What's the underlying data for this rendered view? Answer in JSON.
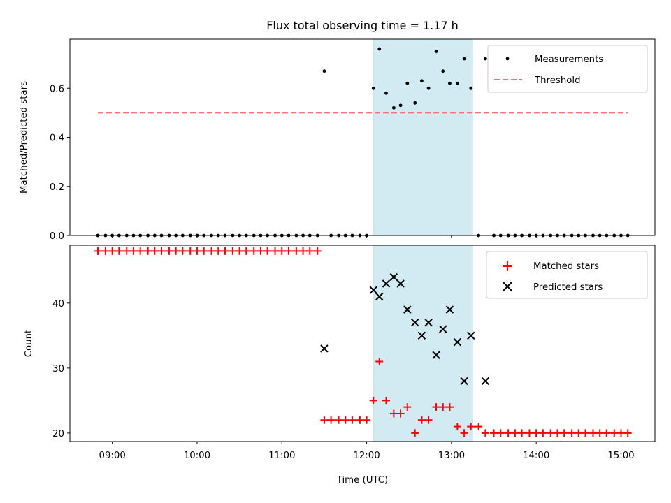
{
  "chart_data": [
    {
      "type": "scatter",
      "title": "Flux total observing time = 1.17 h",
      "xlabel": "",
      "ylabel": "Matched/Predicted stars",
      "ylim": [
        0.0,
        0.8
      ],
      "yticks": [
        0.0,
        0.2,
        0.4,
        0.6
      ],
      "ytick_labels": [
        "0.0",
        "0.2",
        "0.4",
        "0.6"
      ],
      "shaded_region": {
        "x_start": 12.08,
        "x_end": 13.25,
        "color": "#add8e6"
      },
      "legend_position": "upper right",
      "series": [
        {
          "name": "Measurements",
          "style": "dot",
          "color": "#000000",
          "points": [
            [
              8.83,
              0
            ],
            [
              8.92,
              0
            ],
            [
              9.0,
              0
            ],
            [
              9.08,
              0
            ],
            [
              9.17,
              0
            ],
            [
              9.25,
              0
            ],
            [
              9.33,
              0
            ],
            [
              9.42,
              0
            ],
            [
              9.5,
              0
            ],
            [
              9.58,
              0
            ],
            [
              9.67,
              0
            ],
            [
              9.75,
              0
            ],
            [
              9.83,
              0
            ],
            [
              9.92,
              0
            ],
            [
              10.0,
              0
            ],
            [
              10.08,
              0
            ],
            [
              10.17,
              0
            ],
            [
              10.25,
              0
            ],
            [
              10.33,
              0
            ],
            [
              10.42,
              0
            ],
            [
              10.5,
              0
            ],
            [
              10.58,
              0
            ],
            [
              10.67,
              0
            ],
            [
              10.75,
              0
            ],
            [
              10.83,
              0
            ],
            [
              10.92,
              0
            ],
            [
              11.0,
              0
            ],
            [
              11.08,
              0
            ],
            [
              11.17,
              0
            ],
            [
              11.25,
              0
            ],
            [
              11.33,
              0
            ],
            [
              11.42,
              0
            ],
            [
              11.5,
              0.67
            ],
            [
              11.58,
              0
            ],
            [
              11.67,
              0
            ],
            [
              11.75,
              0
            ],
            [
              11.83,
              0
            ],
            [
              11.92,
              0
            ],
            [
              12.0,
              0
            ],
            [
              12.08,
              0.6
            ],
            [
              12.15,
              0.76
            ],
            [
              12.23,
              0.58
            ],
            [
              12.32,
              0.52
            ],
            [
              12.4,
              0.53
            ],
            [
              12.48,
              0.62
            ],
            [
              12.57,
              0.54
            ],
            [
              12.65,
              0.63
            ],
            [
              12.73,
              0.6
            ],
            [
              12.82,
              0.75
            ],
            [
              12.9,
              0.67
            ],
            [
              12.98,
              0.62
            ],
            [
              13.07,
              0.62
            ],
            [
              13.15,
              0.72
            ],
            [
              13.23,
              0.6
            ],
            [
              13.32,
              0
            ],
            [
              13.4,
              0.72
            ],
            [
              13.5,
              0
            ],
            [
              13.58,
              0
            ],
            [
              13.67,
              0
            ],
            [
              13.75,
              0
            ],
            [
              13.83,
              0
            ],
            [
              13.92,
              0
            ],
            [
              14.0,
              0
            ],
            [
              14.08,
              0
            ],
            [
              14.17,
              0
            ],
            [
              14.25,
              0
            ],
            [
              14.33,
              0
            ],
            [
              14.42,
              0
            ],
            [
              14.5,
              0
            ],
            [
              14.58,
              0
            ],
            [
              14.67,
              0
            ],
            [
              14.75,
              0
            ],
            [
              14.83,
              0
            ],
            [
              14.92,
              0
            ],
            [
              15.0,
              0
            ],
            [
              15.08,
              0
            ]
          ]
        },
        {
          "name": "Threshold",
          "style": "dashed-line",
          "color": "#ff7070",
          "points": [
            [
              8.83,
              0.5
            ],
            [
              15.08,
              0.5
            ]
          ]
        }
      ]
    },
    {
      "type": "scatter",
      "title": "",
      "xlabel": "Time (UTC)",
      "ylabel": "Count",
      "ylim": [
        18.7,
        48.9
      ],
      "yticks": [
        20,
        30,
        40
      ],
      "ytick_labels": [
        "20",
        "30",
        "40"
      ],
      "xlim": [
        8.5,
        15.4
      ],
      "xticks": [
        9,
        10,
        11,
        12,
        13,
        14,
        15
      ],
      "xtick_labels": [
        "09:00",
        "10:00",
        "11:00",
        "12:00",
        "13:00",
        "14:00",
        "15:00"
      ],
      "shaded_region": {
        "x_start": 12.08,
        "x_end": 13.25,
        "color": "#add8e6"
      },
      "legend_position": "upper right",
      "series": [
        {
          "name": "Matched stars",
          "style": "plus",
          "color": "#ff0000",
          "points": [
            [
              8.83,
              48
            ],
            [
              8.92,
              48
            ],
            [
              9.0,
              48
            ],
            [
              9.08,
              48
            ],
            [
              9.17,
              48
            ],
            [
              9.25,
              48
            ],
            [
              9.33,
              48
            ],
            [
              9.42,
              48
            ],
            [
              9.5,
              48
            ],
            [
              9.58,
              48
            ],
            [
              9.67,
              48
            ],
            [
              9.75,
              48
            ],
            [
              9.83,
              48
            ],
            [
              9.92,
              48
            ],
            [
              10.0,
              48
            ],
            [
              10.08,
              48
            ],
            [
              10.17,
              48
            ],
            [
              10.25,
              48
            ],
            [
              10.33,
              48
            ],
            [
              10.42,
              48
            ],
            [
              10.5,
              48
            ],
            [
              10.58,
              48
            ],
            [
              10.67,
              48
            ],
            [
              10.75,
              48
            ],
            [
              10.83,
              48
            ],
            [
              10.92,
              48
            ],
            [
              11.0,
              48
            ],
            [
              11.08,
              48
            ],
            [
              11.17,
              48
            ],
            [
              11.25,
              48
            ],
            [
              11.33,
              48
            ],
            [
              11.42,
              48
            ],
            [
              11.5,
              22
            ],
            [
              11.58,
              22
            ],
            [
              11.67,
              22
            ],
            [
              11.75,
              22
            ],
            [
              11.83,
              22
            ],
            [
              11.92,
              22
            ],
            [
              12.0,
              22
            ],
            [
              12.08,
              25
            ],
            [
              12.15,
              31
            ],
            [
              12.23,
              25
            ],
            [
              12.32,
              23
            ],
            [
              12.4,
              23
            ],
            [
              12.48,
              24
            ],
            [
              12.57,
              20
            ],
            [
              12.65,
              22
            ],
            [
              12.73,
              22
            ],
            [
              12.82,
              24
            ],
            [
              12.9,
              24
            ],
            [
              12.98,
              24
            ],
            [
              13.07,
              21
            ],
            [
              13.15,
              20
            ],
            [
              13.23,
              21
            ],
            [
              13.32,
              21
            ],
            [
              13.4,
              20
            ],
            [
              13.5,
              20
            ],
            [
              13.58,
              20
            ],
            [
              13.67,
              20
            ],
            [
              13.75,
              20
            ],
            [
              13.83,
              20
            ],
            [
              13.92,
              20
            ],
            [
              14.0,
              20
            ],
            [
              14.08,
              20
            ],
            [
              14.17,
              20
            ],
            [
              14.25,
              20
            ],
            [
              14.33,
              20
            ],
            [
              14.42,
              20
            ],
            [
              14.5,
              20
            ],
            [
              14.58,
              20
            ],
            [
              14.67,
              20
            ],
            [
              14.75,
              20
            ],
            [
              14.83,
              20
            ],
            [
              14.92,
              20
            ],
            [
              15.0,
              20
            ],
            [
              15.08,
              20
            ]
          ]
        },
        {
          "name": "Predicted stars",
          "style": "x",
          "color": "#000000",
          "points": [
            [
              11.5,
              33
            ],
            [
              12.08,
              42
            ],
            [
              12.15,
              41
            ],
            [
              12.23,
              43
            ],
            [
              12.32,
              44
            ],
            [
              12.4,
              43
            ],
            [
              12.48,
              39
            ],
            [
              12.57,
              37
            ],
            [
              12.65,
              35
            ],
            [
              12.73,
              37
            ],
            [
              12.82,
              32
            ],
            [
              12.9,
              36
            ],
            [
              12.98,
              39
            ],
            [
              13.07,
              34
            ],
            [
              13.15,
              28
            ],
            [
              13.23,
              35
            ],
            [
              13.4,
              28
            ]
          ]
        }
      ]
    }
  ]
}
